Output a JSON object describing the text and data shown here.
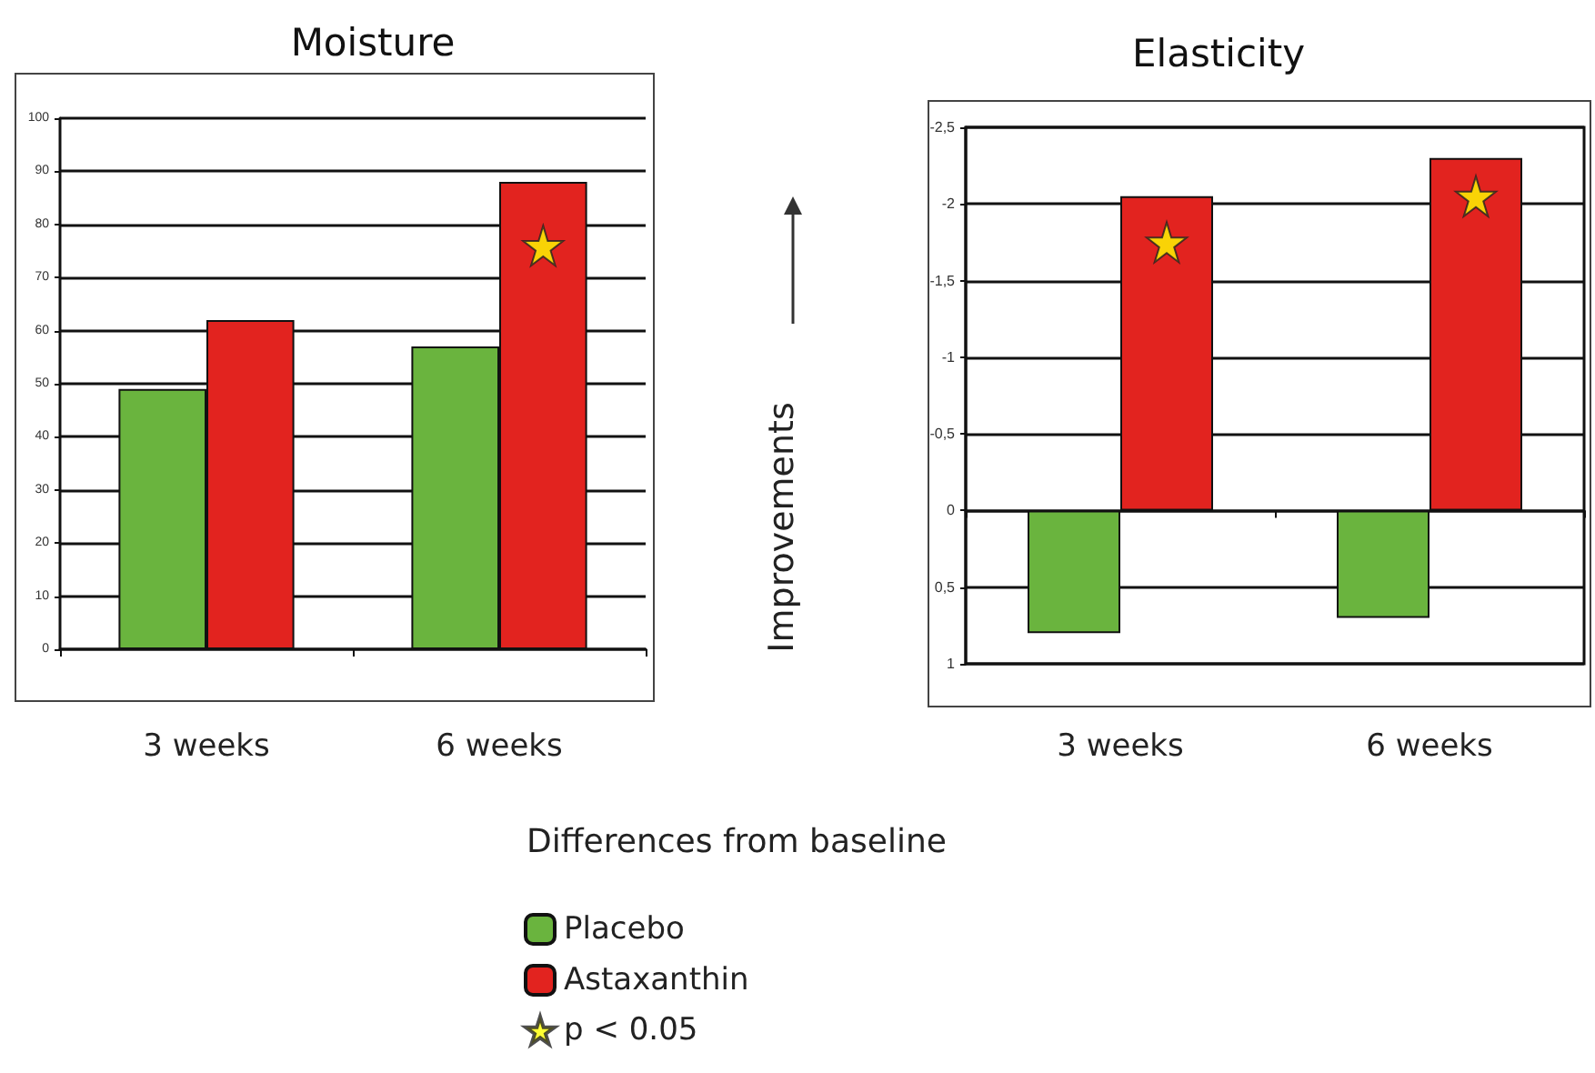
{
  "chart_data": [
    {
      "type": "bar",
      "title": "Moisture",
      "xlabel": "Differences from baseline",
      "categories": [
        "3 weeks",
        "6 weeks"
      ],
      "series": [
        {
          "name": "Placebo",
          "color": "#6ab43e",
          "values": [
            49,
            57
          ]
        },
        {
          "name": "Astaxanthin",
          "color": "#e2231f",
          "values": [
            62,
            88
          ]
        },
        {
          "name": "p < 0.05",
          "type": "scatter",
          "marker": "star",
          "color": "#ffff00",
          "x": [
            "6 weeks"
          ],
          "values": [
            76
          ]
        }
      ],
      "ylim": [
        0,
        100
      ],
      "yticks": [
        0,
        10,
        20,
        30,
        40,
        50,
        60,
        70,
        80,
        90,
        100
      ],
      "grid": "y",
      "legend": "bottom"
    },
    {
      "type": "bar",
      "title": "Elasticity",
      "ylabel": "Improvements",
      "categories": [
        "3 weeks",
        "6 weeks"
      ],
      "series": [
        {
          "color": "#6ab43e",
          "values": [
            0.8,
            0.7
          ]
        },
        {
          "color": "#e2231f",
          "values": [
            -2.05,
            -2.3
          ]
        },
        {
          "type": "scatter",
          "marker": "star",
          "color": "#ffff00",
          "x": [
            "3 weeks",
            "6 weeks"
          ],
          "values": [
            -1.75,
            -2.05
          ]
        }
      ],
      "ylim": [
        1,
        -2.5
      ],
      "yticks": [
        {
          "value": -2.5,
          "label": "-2,5"
        },
        {
          "value": -2,
          "label": "-2"
        },
        {
          "value": -1.5,
          "label": "-1,5"
        },
        {
          "value": -1,
          "label": "-1"
        },
        {
          "value": -0.5,
          "label": "-0,5"
        },
        {
          "value": 0,
          "label": "0"
        },
        {
          "value": 0.5,
          "label": "0,5"
        },
        {
          "value": 1,
          "label": "1"
        }
      ],
      "grid": "y"
    }
  ]
}
